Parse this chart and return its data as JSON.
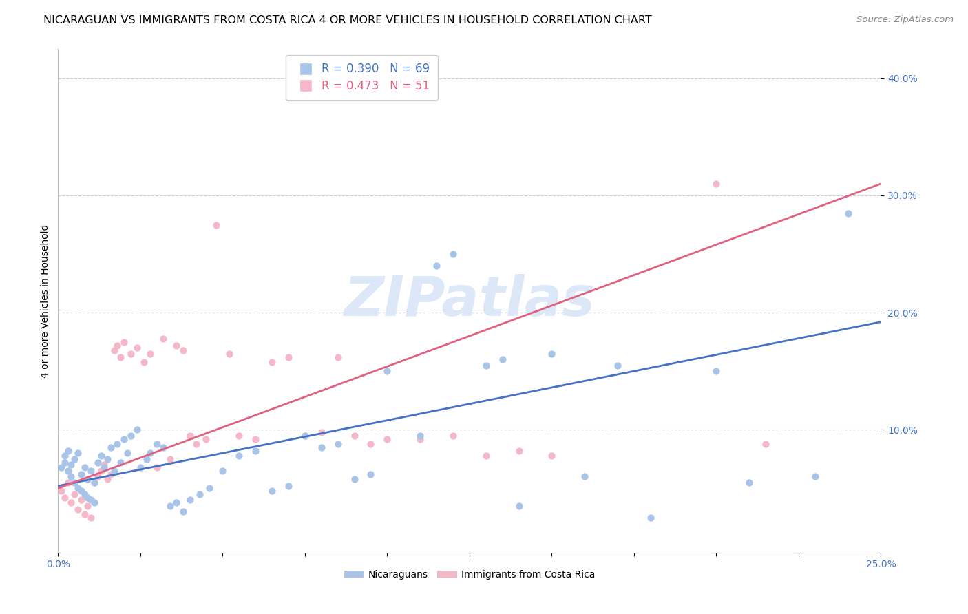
{
  "title": "NICARAGUAN VS IMMIGRANTS FROM COSTA RICA 4 OR MORE VEHICLES IN HOUSEHOLD CORRELATION CHART",
  "source": "Source: ZipAtlas.com",
  "ylabel": "4 or more Vehicles in Household",
  "ytick_values": [
    0.1,
    0.2,
    0.3,
    0.4
  ],
  "xlim": [
    0.0,
    0.25
  ],
  "ylim": [
    -0.005,
    0.425
  ],
  "blue_R": 0.39,
  "blue_N": 69,
  "pink_R": 0.473,
  "pink_N": 51,
  "blue_color": "#a8c4e8",
  "pink_color": "#f5b8c8",
  "blue_line_color": "#4472c4",
  "pink_line_color": "#e06080",
  "watermark": "ZIPatlas",
  "watermark_color": "#dce8f8",
  "title_fontsize": 11.5,
  "source_fontsize": 9.5,
  "legend_fontsize": 12,
  "axis_label_fontsize": 10,
  "ytick_fontsize": 10,
  "blue_scatter_x": [
    0.001,
    0.002,
    0.002,
    0.003,
    0.003,
    0.004,
    0.004,
    0.005,
    0.005,
    0.006,
    0.006,
    0.007,
    0.007,
    0.008,
    0.008,
    0.009,
    0.009,
    0.01,
    0.01,
    0.011,
    0.011,
    0.012,
    0.013,
    0.014,
    0.015,
    0.016,
    0.017,
    0.018,
    0.019,
    0.02,
    0.021,
    0.022,
    0.024,
    0.025,
    0.027,
    0.028,
    0.03,
    0.032,
    0.034,
    0.036,
    0.038,
    0.04,
    0.043,
    0.046,
    0.05,
    0.055,
    0.06,
    0.065,
    0.07,
    0.075,
    0.08,
    0.085,
    0.09,
    0.095,
    0.1,
    0.11,
    0.115,
    0.12,
    0.13,
    0.135,
    0.14,
    0.15,
    0.16,
    0.17,
    0.18,
    0.2,
    0.21,
    0.23,
    0.24
  ],
  "blue_scatter_y": [
    0.068,
    0.072,
    0.078,
    0.065,
    0.082,
    0.06,
    0.07,
    0.055,
    0.075,
    0.05,
    0.08,
    0.048,
    0.062,
    0.045,
    0.068,
    0.042,
    0.058,
    0.04,
    0.065,
    0.038,
    0.055,
    0.072,
    0.078,
    0.068,
    0.075,
    0.085,
    0.065,
    0.088,
    0.072,
    0.092,
    0.08,
    0.095,
    0.1,
    0.068,
    0.075,
    0.08,
    0.088,
    0.085,
    0.035,
    0.038,
    0.03,
    0.04,
    0.045,
    0.05,
    0.065,
    0.078,
    0.082,
    0.048,
    0.052,
    0.095,
    0.085,
    0.088,
    0.058,
    0.062,
    0.15,
    0.095,
    0.24,
    0.25,
    0.155,
    0.16,
    0.035,
    0.165,
    0.06,
    0.155,
    0.025,
    0.15,
    0.055,
    0.06,
    0.285
  ],
  "pink_scatter_x": [
    0.001,
    0.002,
    0.003,
    0.004,
    0.005,
    0.006,
    0.007,
    0.008,
    0.009,
    0.01,
    0.011,
    0.012,
    0.013,
    0.014,
    0.015,
    0.016,
    0.017,
    0.018,
    0.019,
    0.02,
    0.022,
    0.024,
    0.026,
    0.028,
    0.03,
    0.032,
    0.034,
    0.036,
    0.038,
    0.04,
    0.042,
    0.045,
    0.048,
    0.052,
    0.055,
    0.06,
    0.065,
    0.07,
    0.075,
    0.08,
    0.085,
    0.09,
    0.095,
    0.1,
    0.11,
    0.12,
    0.13,
    0.14,
    0.15,
    0.2,
    0.215
  ],
  "pink_scatter_y": [
    0.048,
    0.042,
    0.055,
    0.038,
    0.045,
    0.032,
    0.04,
    0.028,
    0.035,
    0.025,
    0.055,
    0.06,
    0.065,
    0.07,
    0.058,
    0.062,
    0.168,
    0.172,
    0.162,
    0.175,
    0.165,
    0.17,
    0.158,
    0.165,
    0.068,
    0.178,
    0.075,
    0.172,
    0.168,
    0.095,
    0.088,
    0.092,
    0.275,
    0.165,
    0.095,
    0.092,
    0.158,
    0.162,
    0.095,
    0.098,
    0.162,
    0.095,
    0.088,
    0.092,
    0.092,
    0.095,
    0.078,
    0.082,
    0.078,
    0.31,
    0.088
  ],
  "blue_line_x": [
    0.0,
    0.25
  ],
  "blue_line_y": [
    0.052,
    0.192
  ],
  "pink_line_x": [
    0.0,
    0.25
  ],
  "pink_line_y": [
    0.05,
    0.31
  ]
}
